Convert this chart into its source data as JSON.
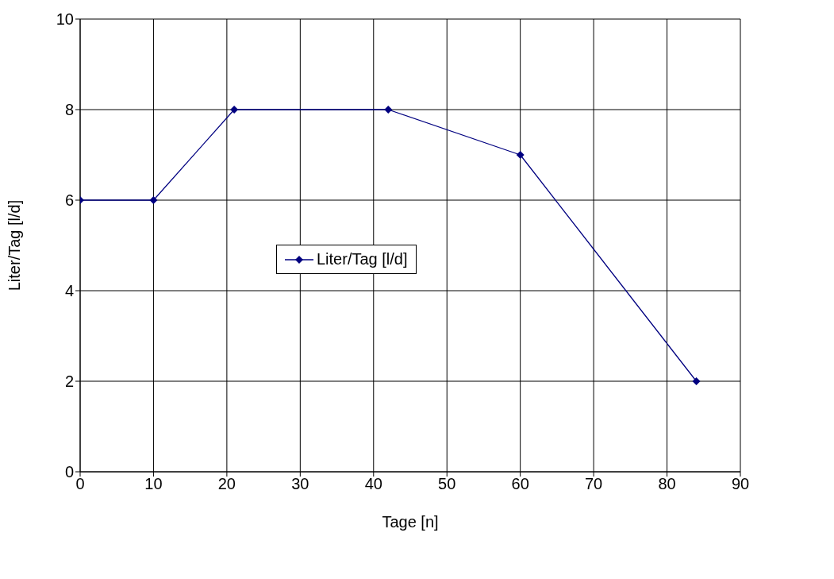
{
  "chart_data": {
    "type": "line",
    "xlabel": "Tage [n]",
    "ylabel": "Liter/Tag [l/d]",
    "x": [
      0,
      10,
      21,
      42,
      60,
      84
    ],
    "series": [
      {
        "name": "Liter/Tag [l/d]",
        "color": "#000080",
        "values": [
          6,
          6,
          8,
          8,
          7,
          2
        ]
      }
    ],
    "xlim": [
      0,
      90
    ],
    "xticks": [
      0,
      10,
      20,
      30,
      40,
      50,
      60,
      70,
      80,
      90
    ],
    "ylim": [
      0,
      10
    ],
    "yticks": [
      0,
      2,
      4,
      6,
      8,
      10
    ],
    "grid": true,
    "legend": "center",
    "marker": "diamond",
    "line_style": "solid"
  }
}
